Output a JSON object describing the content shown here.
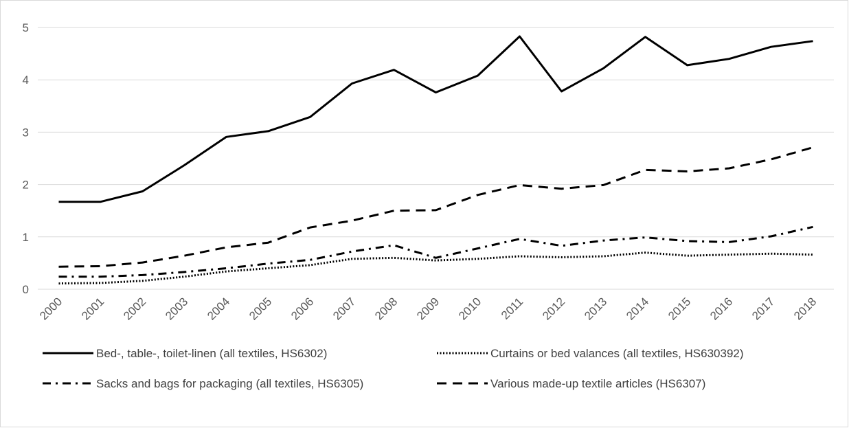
{
  "chart_data": {
    "type": "line",
    "title": "",
    "xlabel": "",
    "ylabel": "",
    "x": [
      "2000",
      "2001",
      "2002",
      "2003",
      "2004",
      "2005",
      "2006",
      "2007",
      "2008",
      "2009",
      "2010",
      "2011",
      "2012",
      "2013",
      "2014",
      "2015",
      "2016",
      "2017",
      "2018"
    ],
    "ylim": [
      0,
      5
    ],
    "yticks": [
      "0",
      "1",
      "2",
      "3",
      "4",
      "5"
    ],
    "grid": true,
    "legend_position": "bottom",
    "series": [
      {
        "name": "Bed-, table-, toilet-linen (all textiles, HS6302)",
        "style": "solid",
        "values": [
          1.67,
          1.67,
          1.87,
          2.37,
          2.91,
          3.02,
          3.29,
          3.93,
          4.19,
          3.76,
          4.08,
          4.83,
          3.78,
          4.22,
          4.82,
          4.28,
          4.4,
          4.63,
          4.74
        ]
      },
      {
        "name": "Curtains or bed valances (all textiles, HS630392)",
        "style": "dotted",
        "values": [
          0.11,
          0.12,
          0.16,
          0.24,
          0.34,
          0.4,
          0.46,
          0.58,
          0.6,
          0.55,
          0.58,
          0.63,
          0.61,
          0.63,
          0.7,
          0.64,
          0.66,
          0.68,
          0.66
        ]
      },
      {
        "name": "Sacks and bags for packaging (all textiles, HS6305)",
        "style": "dashdot",
        "values": [
          0.24,
          0.24,
          0.27,
          0.33,
          0.4,
          0.49,
          0.56,
          0.72,
          0.84,
          0.6,
          0.78,
          0.96,
          0.83,
          0.93,
          0.99,
          0.92,
          0.9,
          1.01,
          1.19
        ]
      },
      {
        "name": "Various made-up textile articles (HS6307)",
        "style": "dashed",
        "values": [
          0.43,
          0.44,
          0.51,
          0.64,
          0.8,
          0.89,
          1.18,
          1.31,
          1.5,
          1.51,
          1.8,
          1.99,
          1.92,
          1.99,
          2.28,
          2.25,
          2.31,
          2.48,
          2.71
        ]
      }
    ],
    "colors": {
      "line": "#000000",
      "grid": "#d9d9d9",
      "text": "#595959"
    }
  }
}
